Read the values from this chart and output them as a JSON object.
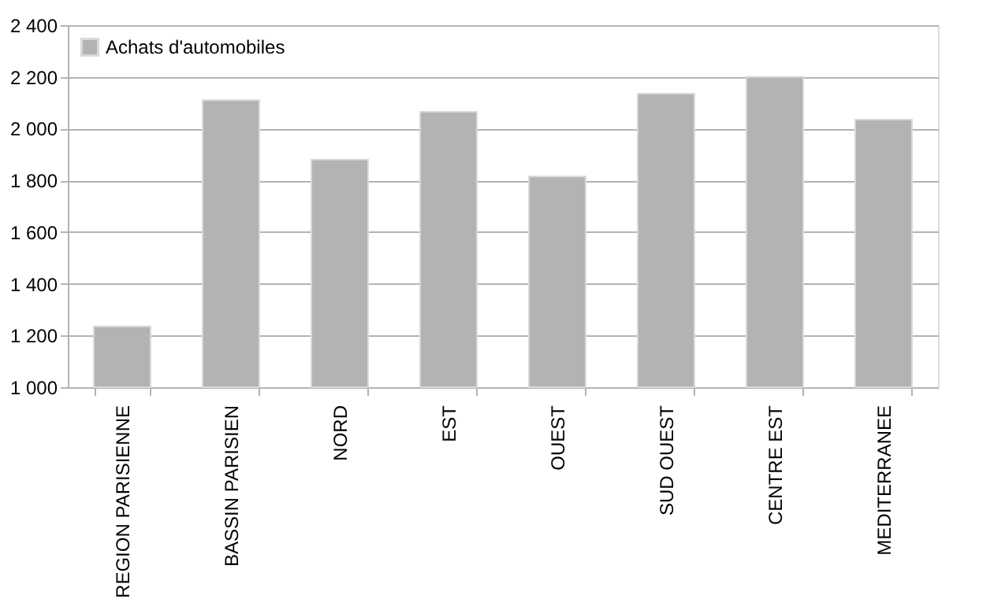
{
  "chart_data": {
    "type": "bar",
    "categories": [
      "REGION PARISIENNE",
      "BASSIN PARISIEN",
      "NORD",
      "EST",
      "OUEST",
      "SUD OUEST",
      "CENTRE EST",
      "MEDITERRANEE"
    ],
    "series": [
      {
        "name": "Achats d'automobiles",
        "color": "#b3b3b3",
        "values": [
          1235,
          2110,
          1880,
          2065,
          1815,
          2135,
          2200,
          2035
        ]
      }
    ],
    "ylim": [
      1000,
      2400
    ],
    "yticks": [
      {
        "value": 1000,
        "label": "1 000"
      },
      {
        "value": 1200,
        "label": "1 200"
      },
      {
        "value": 1400,
        "label": "1 400"
      },
      {
        "value": 1600,
        "label": "1 600"
      },
      {
        "value": 1800,
        "label": "1 800"
      },
      {
        "value": 2000,
        "label": "2 000"
      },
      {
        "value": 2200,
        "label": "2 200"
      },
      {
        "value": 2400,
        "label": "2 400"
      }
    ],
    "grid": "y",
    "legend": "top left"
  }
}
